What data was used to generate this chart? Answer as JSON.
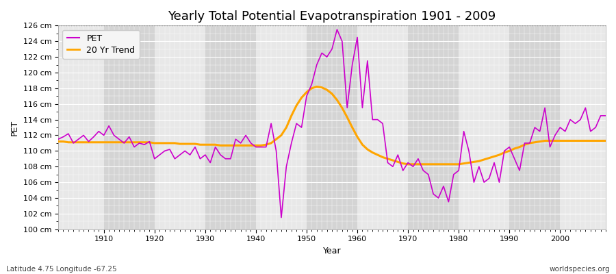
{
  "title": "Yearly Total Potential Evapotranspiration 1901 - 2009",
  "xlabel": "Year",
  "ylabel": "PET",
  "footer_left": "Latitude 4.75 Longitude -67.25",
  "footer_right": "worldspecies.org",
  "ylim": [
    100,
    126
  ],
  "xlim": [
    1901,
    2009
  ],
  "ytick_labels": [
    "100 cm",
    "102 cm",
    "104 cm",
    "106 cm",
    "108 cm",
    "110 cm",
    "112 cm",
    "114 cm",
    "116 cm",
    "118 cm",
    "120 cm",
    "122 cm",
    "124 cm",
    "126 cm"
  ],
  "ytick_values": [
    100,
    102,
    104,
    106,
    108,
    110,
    112,
    114,
    116,
    118,
    120,
    122,
    124,
    126
  ],
  "xticks": [
    1910,
    1920,
    1930,
    1940,
    1950,
    1960,
    1970,
    1980,
    1990,
    2000
  ],
  "years": [
    1901,
    1902,
    1903,
    1904,
    1905,
    1906,
    1907,
    1908,
    1909,
    1910,
    1911,
    1912,
    1913,
    1914,
    1915,
    1916,
    1917,
    1918,
    1919,
    1920,
    1921,
    1922,
    1923,
    1924,
    1925,
    1926,
    1927,
    1928,
    1929,
    1930,
    1931,
    1932,
    1933,
    1934,
    1935,
    1936,
    1937,
    1938,
    1939,
    1940,
    1941,
    1942,
    1943,
    1944,
    1945,
    1946,
    1947,
    1948,
    1949,
    1950,
    1951,
    1952,
    1953,
    1954,
    1955,
    1956,
    1957,
    1958,
    1959,
    1960,
    1961,
    1962,
    1963,
    1964,
    1965,
    1966,
    1967,
    1968,
    1969,
    1970,
    1971,
    1972,
    1973,
    1974,
    1975,
    1976,
    1977,
    1978,
    1979,
    1980,
    1981,
    1982,
    1983,
    1984,
    1985,
    1986,
    1987,
    1988,
    1989,
    1990,
    1991,
    1992,
    1993,
    1994,
    1995,
    1996,
    1997,
    1998,
    1999,
    2000,
    2001,
    2002,
    2003,
    2004,
    2005,
    2006,
    2007,
    2008,
    2009
  ],
  "pet": [
    111.5,
    111.8,
    112.2,
    111.0,
    111.5,
    112.0,
    111.2,
    111.8,
    112.5,
    112.0,
    113.2,
    112.0,
    111.5,
    111.0,
    111.8,
    110.5,
    111.0,
    110.8,
    111.2,
    109.0,
    109.5,
    110.0,
    110.2,
    109.0,
    109.5,
    110.0,
    109.5,
    110.5,
    109.0,
    109.5,
    108.5,
    110.5,
    109.5,
    109.0,
    109.0,
    111.5,
    111.0,
    112.0,
    111.0,
    110.5,
    110.5,
    110.5,
    113.5,
    110.0,
    101.5,
    108.0,
    111.0,
    113.5,
    113.0,
    117.0,
    118.5,
    121.0,
    122.5,
    122.0,
    123.0,
    125.5,
    124.0,
    115.5,
    121.0,
    124.5,
    115.5,
    121.5,
    114.0,
    114.0,
    113.5,
    108.5,
    108.0,
    109.5,
    107.5,
    108.5,
    108.0,
    109.0,
    107.5,
    107.0,
    104.5,
    104.0,
    105.5,
    103.5,
    107.0,
    107.5,
    112.5,
    110.0,
    106.0,
    108.0,
    106.0,
    106.5,
    108.5,
    106.0,
    110.0,
    110.5,
    109.0,
    107.5,
    111.0,
    111.0,
    113.0,
    112.5,
    115.5,
    110.5,
    112.0,
    113.0,
    112.5,
    114.0,
    113.5,
    114.0,
    115.5,
    112.5,
    113.0,
    114.5,
    114.5
  ],
  "trend": [
    111.2,
    111.2,
    111.1,
    111.1,
    111.1,
    111.1,
    111.1,
    111.1,
    111.1,
    111.1,
    111.1,
    111.1,
    111.1,
    111.1,
    111.1,
    111.1,
    111.1,
    111.1,
    111.1,
    111.0,
    111.0,
    111.0,
    111.0,
    111.0,
    110.9,
    110.9,
    110.9,
    110.9,
    110.8,
    110.8,
    110.8,
    110.8,
    110.7,
    110.7,
    110.7,
    110.7,
    110.7,
    110.7,
    110.7,
    110.7,
    110.7,
    110.8,
    111.0,
    111.5,
    112.0,
    113.0,
    114.5,
    115.8,
    116.8,
    117.5,
    118.0,
    118.2,
    118.1,
    117.8,
    117.3,
    116.5,
    115.5,
    114.3,
    113.0,
    111.8,
    110.8,
    110.2,
    109.8,
    109.5,
    109.2,
    109.0,
    108.8,
    108.6,
    108.4,
    108.3,
    108.3,
    108.3,
    108.3,
    108.3,
    108.3,
    108.3,
    108.3,
    108.3,
    108.3,
    108.3,
    108.4,
    108.5,
    108.6,
    108.7,
    108.9,
    109.1,
    109.3,
    109.5,
    109.8,
    110.0,
    110.3,
    110.5,
    110.8,
    111.0,
    111.1,
    111.2,
    111.3,
    111.3,
    111.3,
    111.3,
    111.3,
    111.3,
    111.3,
    111.3,
    111.3,
    111.3,
    111.3,
    111.3,
    111.3
  ],
  "pet_color": "#cc00cc",
  "trend_color": "#ffa500",
  "outer_bg": "#ffffff",
  "plot_bg_light": "#e8e8e8",
  "plot_bg_dark": "#d4d4d4",
  "grid_major_color": "#ffffff",
  "grid_minor_color": "#ffffff",
  "top_dotted_color": "#888888",
  "title_fontsize": 13,
  "label_fontsize": 9,
  "tick_fontsize": 8,
  "footer_fontsize": 7.5,
  "legend_bg": "#f5f5f5"
}
